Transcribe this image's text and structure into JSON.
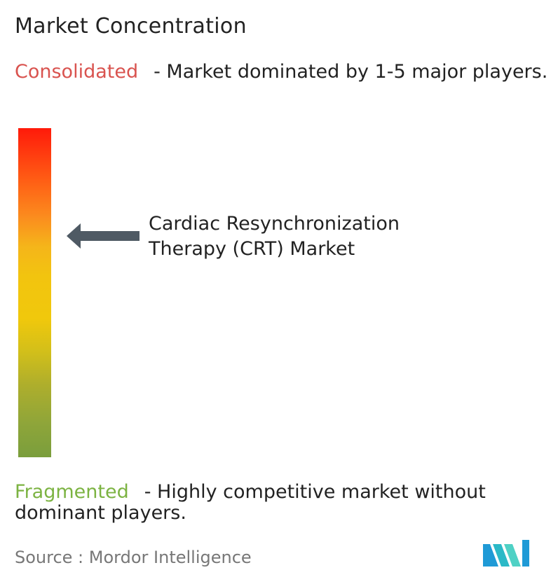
{
  "title": "Market Concentration",
  "consolidated": {
    "keyword": "Consolidated",
    "description": "- Market dominated by 1-5 major players.",
    "color": "#d9534f"
  },
  "fragmented": {
    "keyword": "Fragmented",
    "description": "- Highly competitive market without dominant players.",
    "color": "#7cb342"
  },
  "market": {
    "label": "Cardiac Resynchronization Therapy (CRT) Market"
  },
  "source": {
    "text": "Source :  Mordor Intelligence"
  },
  "logo": {
    "icon": "mordor-intelligence-logo",
    "colors": [
      "#1f9ad6",
      "#2bb9c7",
      "#4fd1c5"
    ]
  }
}
